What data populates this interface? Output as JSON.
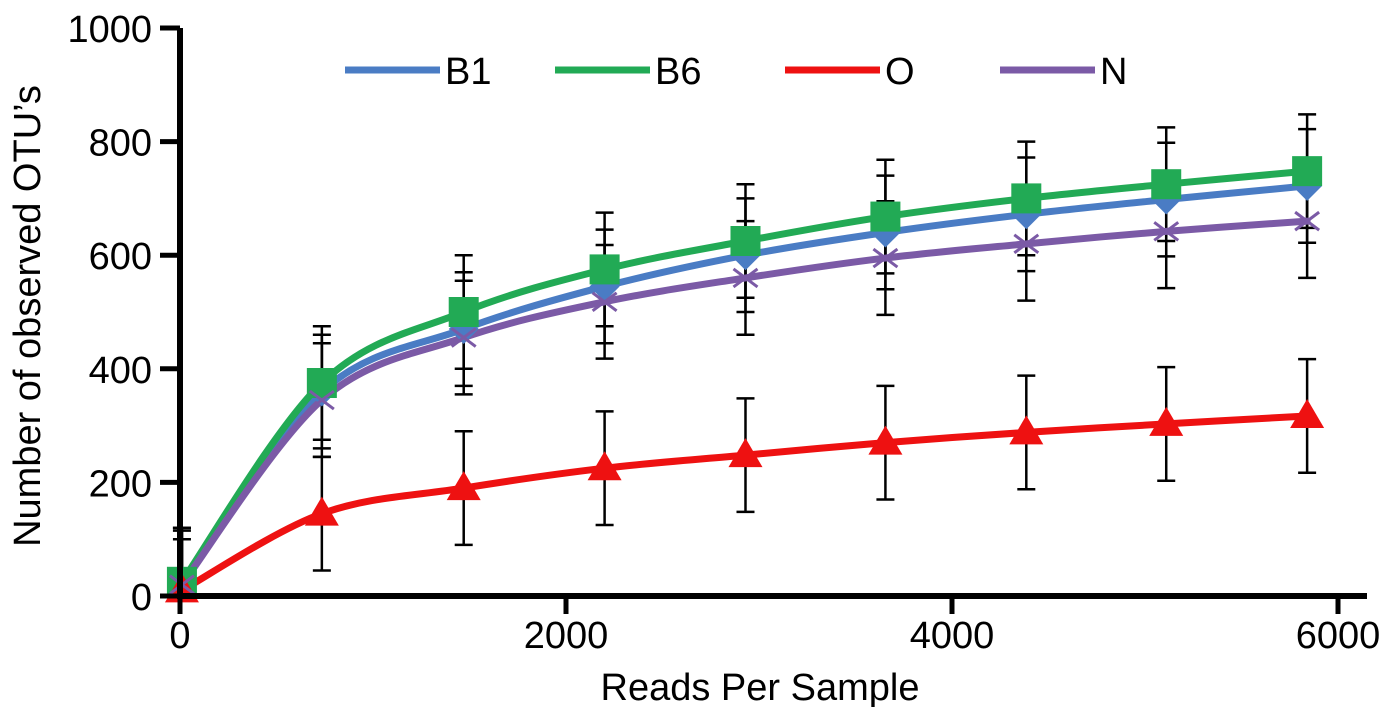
{
  "chart_data": {
    "type": "line",
    "title": "",
    "xlabel": "Reads Per Sample",
    "ylabel": "Number of observed OTU’s",
    "xlim": [
      0,
      6000
    ],
    "ylim": [
      0,
      1000
    ],
    "x_ticks": [
      0,
      2000,
      4000,
      6000
    ],
    "y_ticks": [
      0,
      200,
      400,
      600,
      800,
      1000
    ],
    "x_tick_labels": [
      "0",
      "2000",
      "4000",
      "6000"
    ],
    "y_tick_labels": [
      "0",
      "200",
      "400",
      "600",
      "800",
      "1000"
    ],
    "grid": false,
    "legend_position": "top",
    "error_bars": true,
    "x": [
      10,
      735,
      1470,
      2200,
      2930,
      3655,
      4385,
      5110,
      5840
    ],
    "series": [
      {
        "name": "B1",
        "color": "#4a7cc4",
        "marker": "diamond",
        "values": [
          25,
          360,
          470,
          545,
          600,
          640,
          672,
          698,
          722
        ],
        "errors": [
          95,
          100,
          100,
          100,
          100,
          100,
          100,
          100,
          100
        ]
      },
      {
        "name": "B6",
        "color": "#22aa55",
        "marker": "square",
        "values": [
          25,
          375,
          500,
          575,
          625,
          668,
          700,
          725,
          748
        ],
        "errors": [
          95,
          100,
          100,
          100,
          100,
          100,
          100,
          100,
          100
        ]
      },
      {
        "name": "O",
        "color": "#ee1111",
        "marker": "triangle",
        "values": [
          10,
          145,
          190,
          225,
          248,
          270,
          288,
          303,
          317
        ],
        "errors": [
          90,
          100,
          100,
          100,
          100,
          100,
          100,
          100,
          100
        ]
      },
      {
        "name": "N",
        "color": "#7b5aa6",
        "marker": "x",
        "values": [
          20,
          345,
          455,
          518,
          560,
          595,
          620,
          642,
          660
        ],
        "errors": [
          95,
          100,
          100,
          100,
          100,
          100,
          100,
          100,
          100
        ]
      }
    ]
  }
}
